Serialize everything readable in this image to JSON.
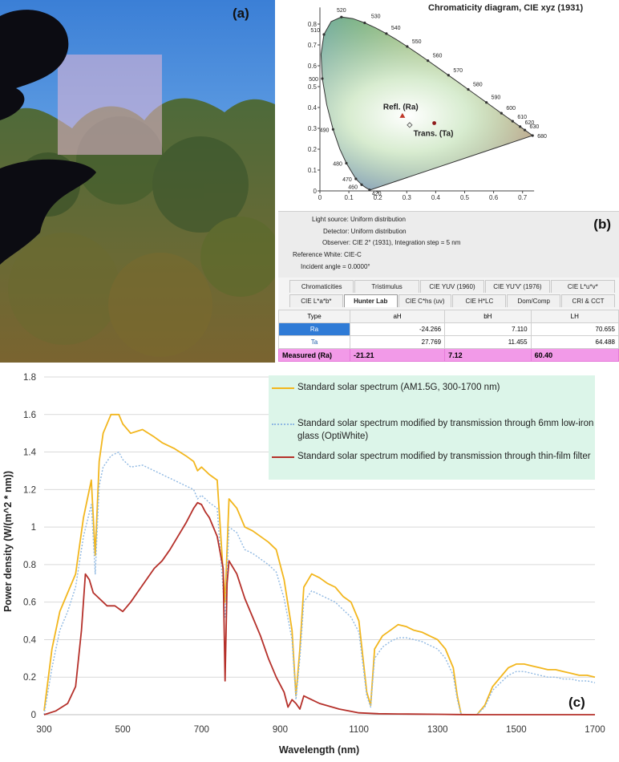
{
  "panels": {
    "a": "(a)",
    "b": "(b)",
    "c": "(c)"
  },
  "cie": {
    "title": "Chromaticity diagram, CIE xyz (1931)",
    "wavelength_labels": [
      "520",
      "530",
      "540",
      "550",
      "560",
      "570",
      "580",
      "590",
      "600",
      "610",
      "620",
      "630",
      "680",
      "510",
      "500",
      "490",
      "480",
      "470",
      "460",
      "420"
    ],
    "x_ticks": [
      "0",
      "0.1",
      "0.2",
      "0.3",
      "0.4",
      "0.5",
      "0.6",
      "0.7"
    ],
    "y_ticks": [
      "0",
      "0.1",
      "0.2",
      "0.3",
      "0.4",
      "0.5",
      "0.6",
      "0.7",
      "0.8"
    ],
    "points": [
      {
        "label": "Refl. (Ra)",
        "x": 0.285,
        "y": 0.36,
        "color": "#c0392b",
        "marker": "triangle"
      },
      {
        "label": "Trans. (Ta)",
        "x": 0.395,
        "y": 0.325,
        "color": "#8e1a1a",
        "marker": "circle"
      },
      {
        "label": "",
        "x": 0.31,
        "y": 0.316,
        "color": "#666666",
        "marker": "diamond"
      }
    ]
  },
  "settings": {
    "light_source": "Light source: Uniform distribution",
    "detector": "Detector: Uniform distribution",
    "observer": "Observer: CIE 2° (1931),   Integration step = 5 nm",
    "reference_white": "Reference White: CIE-C",
    "incident_angle": "Incident angle = 0.0000°"
  },
  "tabs": {
    "row1": [
      "Chromaticities",
      "Tristimulus",
      "CIE YUV (1960)",
      "CIE YU'V' (1976)",
      "CIE L*u*v*"
    ],
    "row2": [
      "CIE L*a*b*",
      "Hunter Lab",
      "CIE C*hs (uv)",
      "CIE H*LC",
      "Dom/Comp",
      "CRI & CCT"
    ],
    "active": "Hunter Lab"
  },
  "table": {
    "headers": [
      "Type",
      "aH",
      "bH",
      "LH"
    ],
    "rows": [
      {
        "type": "Ra",
        "aH": "-24.266",
        "bH": "7.110",
        "LH": "70.655"
      },
      {
        "type": "Ta",
        "aH": "27.769",
        "bH": "11.455",
        "LH": "64.488"
      }
    ],
    "measured": {
      "label": "Measured (Ra)",
      "aH": "-21.21",
      "bH": "7.12",
      "LH": "60.40"
    }
  },
  "chart_data": {
    "type": "line",
    "xlabel": "Wavelength (nm)",
    "ylabel": "Power density (W/(m^2 * nm))",
    "xlim": [
      300,
      1700
    ],
    "ylim": [
      0,
      1.8
    ],
    "x_ticks": [
      "300",
      "500",
      "700",
      "900",
      "1100",
      "1300",
      "1500",
      "1700"
    ],
    "y_ticks": [
      "0",
      "0.2",
      "0.4",
      "0.6",
      "0.8",
      "1",
      "1.2",
      "1.4",
      "1.6",
      "1.8"
    ],
    "grid": "horizontal",
    "legend": "top-right",
    "series": [
      {
        "name": "Standard solar spectrum (AM1.5G, 300-1700 nm)",
        "color": "#f2b61d",
        "style": "solid",
        "x": [
          300,
          320,
          340,
          360,
          380,
          400,
          420,
          430,
          440,
          450,
          470,
          490,
          500,
          520,
          550,
          580,
          600,
          630,
          660,
          680,
          690,
          700,
          720,
          740,
          760,
          770,
          790,
          810,
          830,
          850,
          870,
          890,
          910,
          930,
          940,
          950,
          960,
          980,
          1000,
          1020,
          1040,
          1060,
          1080,
          1100,
          1120,
          1130,
          1140,
          1160,
          1180,
          1200,
          1220,
          1240,
          1260,
          1280,
          1300,
          1320,
          1340,
          1350,
          1360,
          1400,
          1420,
          1440,
          1460,
          1480,
          1500,
          1520,
          1540,
          1560,
          1580,
          1600,
          1620,
          1640,
          1660,
          1680,
          1700
        ],
        "y": [
          0.02,
          0.35,
          0.55,
          0.65,
          0.75,
          1.05,
          1.25,
          0.85,
          1.35,
          1.5,
          1.6,
          1.6,
          1.55,
          1.5,
          1.52,
          1.48,
          1.45,
          1.42,
          1.38,
          1.35,
          1.3,
          1.32,
          1.28,
          1.25,
          0.6,
          1.15,
          1.1,
          1.0,
          0.98,
          0.95,
          0.92,
          0.88,
          0.72,
          0.45,
          0.1,
          0.35,
          0.68,
          0.75,
          0.73,
          0.7,
          0.68,
          0.63,
          0.6,
          0.5,
          0.12,
          0.05,
          0.35,
          0.42,
          0.45,
          0.48,
          0.47,
          0.45,
          0.44,
          0.42,
          0.4,
          0.35,
          0.25,
          0.1,
          0.0,
          0.0,
          0.05,
          0.15,
          0.2,
          0.25,
          0.27,
          0.27,
          0.26,
          0.25,
          0.24,
          0.24,
          0.23,
          0.22,
          0.21,
          0.21,
          0.2
        ]
      },
      {
        "name": "Standard solar spectrum modified by transmission through 6mm low-iron glass (OptiWhite)",
        "color": "#8fb8e2",
        "style": "dotted",
        "x": [
          300,
          320,
          340,
          360,
          380,
          400,
          420,
          430,
          440,
          450,
          470,
          490,
          500,
          520,
          550,
          580,
          600,
          630,
          660,
          680,
          690,
          700,
          720,
          740,
          760,
          770,
          790,
          810,
          830,
          850,
          870,
          890,
          910,
          930,
          940,
          950,
          960,
          980,
          1000,
          1020,
          1040,
          1060,
          1080,
          1100,
          1120,
          1130,
          1140,
          1160,
          1180,
          1200,
          1220,
          1240,
          1260,
          1280,
          1300,
          1320,
          1340,
          1350,
          1360,
          1400,
          1420,
          1440,
          1460,
          1480,
          1500,
          1520,
          1540,
          1560,
          1580,
          1600,
          1620,
          1640,
          1660,
          1680,
          1700
        ],
        "y": [
          0.0,
          0.25,
          0.45,
          0.55,
          0.68,
          0.95,
          1.12,
          0.75,
          1.22,
          1.32,
          1.38,
          1.4,
          1.36,
          1.32,
          1.33,
          1.3,
          1.28,
          1.25,
          1.22,
          1.2,
          1.15,
          1.17,
          1.13,
          1.1,
          0.52,
          1.0,
          0.97,
          0.88,
          0.86,
          0.83,
          0.8,
          0.76,
          0.62,
          0.4,
          0.08,
          0.3,
          0.6,
          0.66,
          0.64,
          0.62,
          0.6,
          0.56,
          0.52,
          0.44,
          0.1,
          0.04,
          0.3,
          0.36,
          0.39,
          0.41,
          0.41,
          0.4,
          0.39,
          0.37,
          0.35,
          0.3,
          0.21,
          0.08,
          0.0,
          0.0,
          0.04,
          0.13,
          0.17,
          0.21,
          0.23,
          0.23,
          0.22,
          0.21,
          0.2,
          0.2,
          0.19,
          0.19,
          0.18,
          0.18,
          0.17
        ]
      },
      {
        "name": "Standard solar spectrum modified by transmission through thin-film filter",
        "color": "#b5302a",
        "style": "solid",
        "x": [
          300,
          330,
          360,
          380,
          395,
          405,
          415,
          425,
          440,
          460,
          480,
          500,
          520,
          540,
          560,
          580,
          600,
          620,
          640,
          660,
          680,
          690,
          700,
          710,
          720,
          740,
          755,
          760,
          765,
          770,
          790,
          810,
          830,
          850,
          870,
          890,
          910,
          920,
          930,
          940,
          950,
          960,
          980,
          1000,
          1050,
          1100,
          1150,
          1200,
          1250,
          1300,
          1350,
          1400,
          1500,
          1600,
          1700
        ],
        "y": [
          0.0,
          0.02,
          0.06,
          0.15,
          0.45,
          0.75,
          0.72,
          0.65,
          0.62,
          0.58,
          0.58,
          0.55,
          0.6,
          0.66,
          0.72,
          0.78,
          0.82,
          0.88,
          0.95,
          1.02,
          1.1,
          1.13,
          1.12,
          1.08,
          1.05,
          0.95,
          0.78,
          0.18,
          0.7,
          0.82,
          0.75,
          0.62,
          0.52,
          0.42,
          0.3,
          0.2,
          0.12,
          0.04,
          0.08,
          0.06,
          0.03,
          0.1,
          0.08,
          0.06,
          0.03,
          0.01,
          0.005,
          0.004,
          0.003,
          0.002,
          0.001,
          0.0,
          0.0,
          0.0,
          0.0
        ]
      }
    ]
  }
}
